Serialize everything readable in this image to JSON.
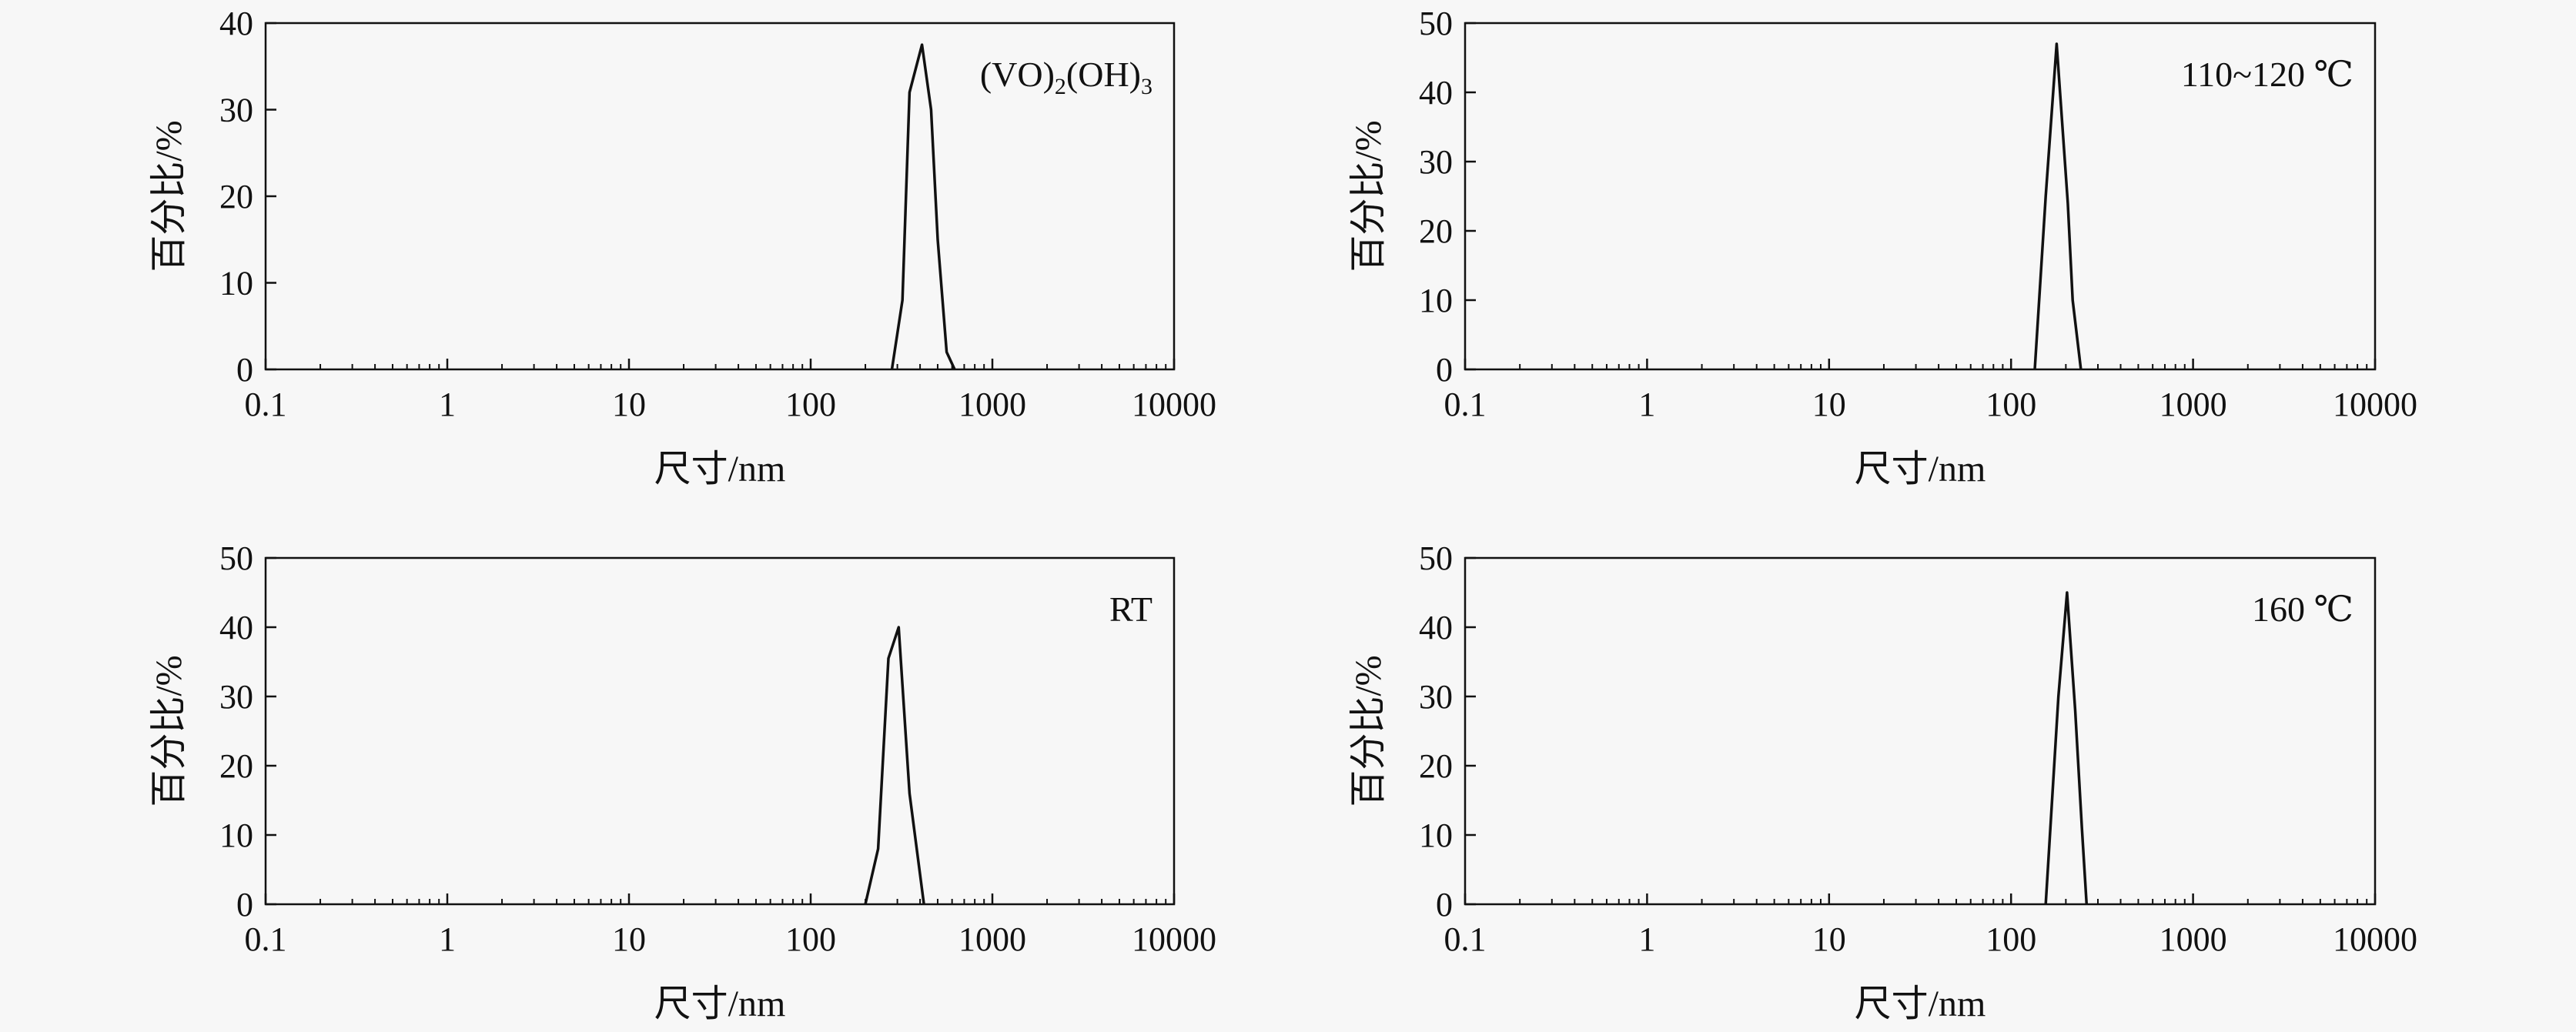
{
  "chart_data": [
    {
      "type": "line",
      "xlabel": "尺寸/nm",
      "ylabel": "百分比/%",
      "xscale": "log",
      "xlim": [
        0.1,
        10000
      ],
      "ylim": [
        0,
        40
      ],
      "xticks": [
        "0.1",
        "1",
        "10",
        "100",
        "1000",
        "10000"
      ],
      "yticks": [
        "0",
        "10",
        "20",
        "30",
        "40"
      ],
      "annotation": {
        "main": "(VO)",
        "sub1": "2",
        "mid": "(OH)",
        "sub2": "3"
      },
      "x": [
        280,
        320,
        350,
        410,
        460,
        500,
        560,
        620
      ],
      "y": [
        0,
        8,
        32,
        37.5,
        30,
        15,
        2,
        0
      ]
    },
    {
      "type": "line",
      "xlabel": "尺寸/nm",
      "ylabel": "百分比/%",
      "xscale": "log",
      "xlim": [
        0.1,
        10000
      ],
      "ylim": [
        0,
        50
      ],
      "xticks": [
        "0.1",
        "1",
        "10",
        "100",
        "1000",
        "10000"
      ],
      "yticks": [
        "0",
        "10",
        "20",
        "30",
        "40",
        "50"
      ],
      "annotation": {
        "main": "110~120 ℃"
      },
      "x": [
        135,
        155,
        178,
        205,
        218,
        242
      ],
      "y": [
        0,
        25,
        47,
        24,
        10,
        0
      ]
    },
    {
      "type": "line",
      "xlabel": "尺寸/nm",
      "ylabel": "百分比/%",
      "xscale": "log",
      "xlim": [
        0.1,
        10000
      ],
      "ylim": [
        0,
        50
      ],
      "xticks": [
        "0.1",
        "1",
        "10",
        "100",
        "1000",
        "10000"
      ],
      "yticks": [
        "0",
        "10",
        "20",
        "30",
        "40",
        "50"
      ],
      "annotation": {
        "main": "RT"
      },
      "x": [
        200,
        235,
        268,
        305,
        350,
        420
      ],
      "y": [
        0,
        8,
        35.5,
        40,
        16,
        0
      ]
    },
    {
      "type": "line",
      "xlabel": "尺寸/nm",
      "ylabel": "百分比/%",
      "xscale": "log",
      "xlim": [
        0.1,
        10000
      ],
      "ylim": [
        0,
        50
      ],
      "xticks": [
        "0.1",
        "1",
        "10",
        "100",
        "1000",
        "10000"
      ],
      "yticks": [
        "0",
        "10",
        "20",
        "30",
        "40",
        "50"
      ],
      "annotation": {
        "main": "160 ℃"
      },
      "x": [
        155,
        182,
        203,
        225,
        245,
        260
      ],
      "y": [
        0,
        30,
        45,
        28,
        11,
        0
      ]
    }
  ]
}
